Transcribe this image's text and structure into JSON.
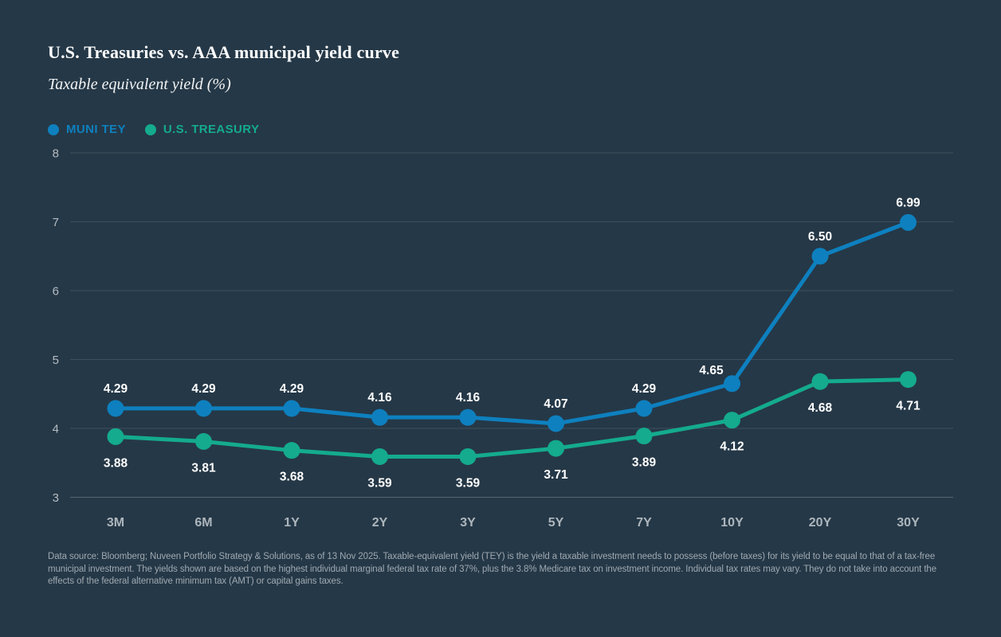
{
  "header": {
    "title": "U.S. Treasuries vs. AAA municipal yield curve",
    "subtitle": "Taxable equivalent yield (%)"
  },
  "legend": {
    "items": [
      {
        "label": "MUNI TEY",
        "color": "#0e80bf"
      },
      {
        "label": "U.S. TREASURY",
        "color": "#14ab8e"
      }
    ]
  },
  "footnote": "Data source: Bloomberg; Nuveen Portfolio Strategy & Solutions, as of 13 Nov 2025. Taxable-equivalent yield (TEY) is the yield a taxable investment needs to possess (before taxes) for its yield to be equal to that of a tax-free municipal investment. The yields shown are based on the highest individual marginal federal tax rate of 37%, plus the 3.8% Medicare tax on investment income. Individual tax rates may vary. They do not take into account the effects of the federal alternative minimum tax (AMT) or capital gains taxes.",
  "colors": {
    "background": "#253847",
    "grid": "#3e505e",
    "axis_line": "#566470",
    "axis_text": "#b5bcc3",
    "x_axis_text": "#adb6bd",
    "data_label": "#ffffff",
    "muni_blue": "#0e80bf",
    "treasury_teal": "#14ab8e"
  },
  "chart_data": {
    "type": "line",
    "title": "U.S. Treasuries vs. AAA municipal yield curve",
    "ylabel": "Taxable equivalent yield (%)",
    "xlabel": "",
    "categories": [
      "3M",
      "6M",
      "1Y",
      "2Y",
      "3Y",
      "5Y",
      "7Y",
      "10Y",
      "20Y",
      "30Y"
    ],
    "series": [
      {
        "name": "MUNI TEY",
        "color": "#0e80bf",
        "values": [
          4.29,
          4.29,
          4.29,
          4.16,
          4.16,
          4.07,
          4.29,
          4.65,
          6.5,
          6.99
        ],
        "data_label_position": "above"
      },
      {
        "name": "U.S. TREASURY",
        "color": "#14ab8e",
        "values": [
          3.88,
          3.81,
          3.68,
          3.59,
          3.59,
          3.71,
          3.89,
          4.12,
          4.68,
          4.71
        ],
        "data_label_position": "below"
      }
    ],
    "ylim": [
      3,
      8
    ],
    "yticks": [
      3,
      4,
      5,
      6,
      7,
      8
    ],
    "grid": true,
    "legend_position": "top-left",
    "data_labels": true,
    "value_format": "2dp"
  }
}
